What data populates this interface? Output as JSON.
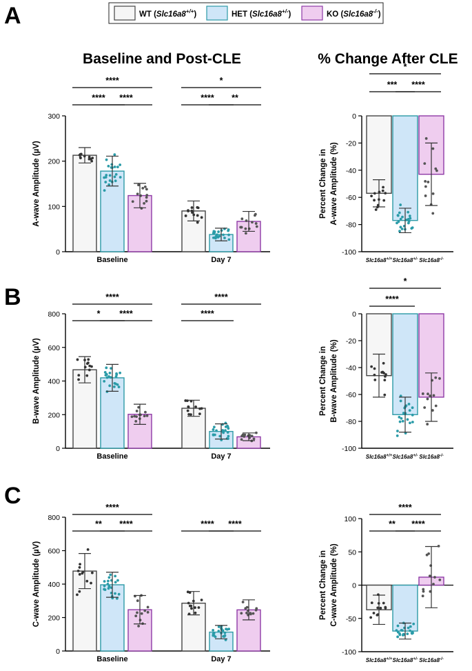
{
  "panel_labels": [
    "A",
    "B",
    "C"
  ],
  "legend": [
    {
      "name": "WT",
      "genotype": "Slc16a8",
      "sup": "+/+",
      "fill": "#f6f6f6",
      "stroke": "#444444"
    },
    {
      "name": "HET",
      "genotype": "Slc16a8",
      "sup": "+/-",
      "fill": "#cfe6f8",
      "stroke": "#2c9aa6"
    },
    {
      "name": "KO",
      "genotype": "Slc16a8",
      "sup": "-/-",
      "fill": "#efcdef",
      "stroke": "#8e3aa6"
    }
  ],
  "section_titles": {
    "left": "Baseline and Post-CLE",
    "right": "% Change After CLE"
  },
  "colors": {
    "wt_dot": "#333333",
    "het_dot": "#2a9ba8",
    "ko_dot": "#555555",
    "error": "#333333"
  },
  "chart_data": [
    {
      "id": "A-left",
      "type": "bar",
      "panel": "A",
      "ylabel": "A-wave Amplitude (µV)",
      "ylim": [
        0,
        300
      ],
      "yticks": [
        0,
        100,
        200,
        300
      ],
      "categories": [
        "Baseline",
        "Day 7"
      ],
      "series": [
        {
          "name": "WT",
          "values": [
            213,
            90
          ],
          "sd": [
            17,
            22
          ]
        },
        {
          "name": "HET",
          "values": [
            178,
            38
          ],
          "sd": [
            33,
            14
          ]
        },
        {
          "name": "KO",
          "values": [
            124,
            67
          ],
          "sd": [
            27,
            22
          ]
        }
      ],
      "significance": [
        {
          "group": 0,
          "from": 0,
          "to": 2,
          "level": 1,
          "label": "****"
        },
        {
          "group": 0,
          "from": 0,
          "to": 1,
          "level": 0,
          "label": "****"
        },
        {
          "group": 0,
          "from": 1,
          "to": 2,
          "level": 0,
          "label": "****"
        },
        {
          "group": 1,
          "from": 0,
          "to": 2,
          "level": 1,
          "label": "*"
        },
        {
          "group": 1,
          "from": 0,
          "to": 1,
          "level": 0,
          "label": "****"
        },
        {
          "group": 1,
          "from": 1,
          "to": 2,
          "level": 0,
          "label": "**"
        }
      ]
    },
    {
      "id": "A-right",
      "type": "bar",
      "panel": "A",
      "ylabel": [
        "Percent Change in",
        "A-wave Amplitude (%)"
      ],
      "ylim": [
        -100,
        0
      ],
      "yticks": [
        -100,
        -80,
        -60,
        -40,
        -20,
        0
      ],
      "categories": [
        "Slc16a8+/+",
        "Slc16a8+/-",
        "Slc16a8-/-"
      ],
      "values": [
        -57,
        -77,
        -43
      ],
      "sd": [
        10,
        9,
        23
      ],
      "significance": [
        {
          "from": 0,
          "to": 2,
          "level": 2,
          "label": "*"
        },
        {
          "from": 0,
          "to": 1,
          "level": 1,
          "label": "***"
        },
        {
          "from": 1,
          "to": 2,
          "level": 1,
          "label": "****"
        }
      ]
    },
    {
      "id": "B-left",
      "type": "bar",
      "panel": "B",
      "ylabel": "B-wave Amplitude (µV)",
      "ylim": [
        0,
        800
      ],
      "yticks": [
        0,
        200,
        400,
        600,
        800
      ],
      "categories": [
        "Baseline",
        "Day 7"
      ],
      "series": [
        {
          "name": "WT",
          "values": [
            467,
            238
          ],
          "sd": [
            78,
            48
          ]
        },
        {
          "name": "HET",
          "values": [
            419,
            100
          ],
          "sd": [
            80,
            45
          ]
        },
        {
          "name": "KO",
          "values": [
            202,
            68
          ],
          "sd": [
            60,
            23
          ]
        }
      ],
      "significance": [
        {
          "group": 0,
          "from": 0,
          "to": 2,
          "level": 1,
          "label": "****"
        },
        {
          "group": 0,
          "from": 0,
          "to": 1,
          "level": 0,
          "label": "*"
        },
        {
          "group": 0,
          "from": 1,
          "to": 2,
          "level": 0,
          "label": "****"
        },
        {
          "group": 1,
          "from": 0,
          "to": 2,
          "level": 1,
          "label": "****"
        },
        {
          "group": 1,
          "from": 0,
          "to": 1,
          "level": 0,
          "label": "****"
        }
      ]
    },
    {
      "id": "B-right",
      "type": "bar",
      "panel": "B",
      "ylabel": [
        "Percent Change in",
        "B-wave Amplitude (%)"
      ],
      "ylim": [
        -100,
        0
      ],
      "yticks": [
        -100,
        -80,
        -60,
        -40,
        -20,
        0
      ],
      "categories": [
        "Slc16a8+/+",
        "Slc16a8+/-",
        "Slc16a8-/-"
      ],
      "values": [
        -46,
        -75,
        -62
      ],
      "sd": [
        16,
        13,
        18
      ],
      "significance": [
        {
          "from": 0,
          "to": 2,
          "level": 1,
          "label": "*"
        },
        {
          "from": 0,
          "to": 1,
          "level": 0,
          "label": "****"
        }
      ]
    },
    {
      "id": "C-left",
      "type": "bar",
      "panel": "C",
      "ylabel": "C-wave Amplitude (µV)",
      "ylim": [
        0,
        800
      ],
      "yticks": [
        0,
        200,
        400,
        600,
        800
      ],
      "categories": [
        "Baseline",
        "Day 7"
      ],
      "series": [
        {
          "name": "WT",
          "values": [
            478,
            286
          ],
          "sd": [
            105,
            70
          ]
        },
        {
          "name": "HET",
          "values": [
            396,
            113
          ],
          "sd": [
            75,
            40
          ]
        },
        {
          "name": "KO",
          "values": [
            247,
            246
          ],
          "sd": [
            85,
            60
          ]
        }
      ],
      "significance": [
        {
          "group": 0,
          "from": 0,
          "to": 2,
          "level": 1,
          "label": "****"
        },
        {
          "group": 0,
          "from": 0,
          "to": 1,
          "level": 0,
          "label": "**"
        },
        {
          "group": 0,
          "from": 1,
          "to": 2,
          "level": 0,
          "label": "****"
        },
        {
          "group": 1,
          "from": 0,
          "to": 1,
          "level": 0,
          "label": "****"
        },
        {
          "group": 1,
          "from": 1,
          "to": 2,
          "level": 0,
          "label": "****"
        }
      ]
    },
    {
      "id": "C-right",
      "type": "bar",
      "panel": "C",
      "ylabel": [
        "Percent Change in",
        "C-wave Amplitude (%)"
      ],
      "ylim": [
        -100,
        100
      ],
      "yticks": [
        -100,
        -50,
        0,
        50,
        100
      ],
      "categories": [
        "Slc16a8+/+",
        "Slc16a8+/-",
        "Slc16a8-/-"
      ],
      "values": [
        -37,
        -69,
        12
      ],
      "sd": [
        22,
        12,
        46
      ],
      "significance": [
        {
          "from": 0,
          "to": 2,
          "level": 1,
          "label": "****"
        },
        {
          "from": 0,
          "to": 1,
          "level": 0,
          "label": "**"
        },
        {
          "from": 1,
          "to": 2,
          "level": 0,
          "label": "****"
        }
      ]
    }
  ]
}
